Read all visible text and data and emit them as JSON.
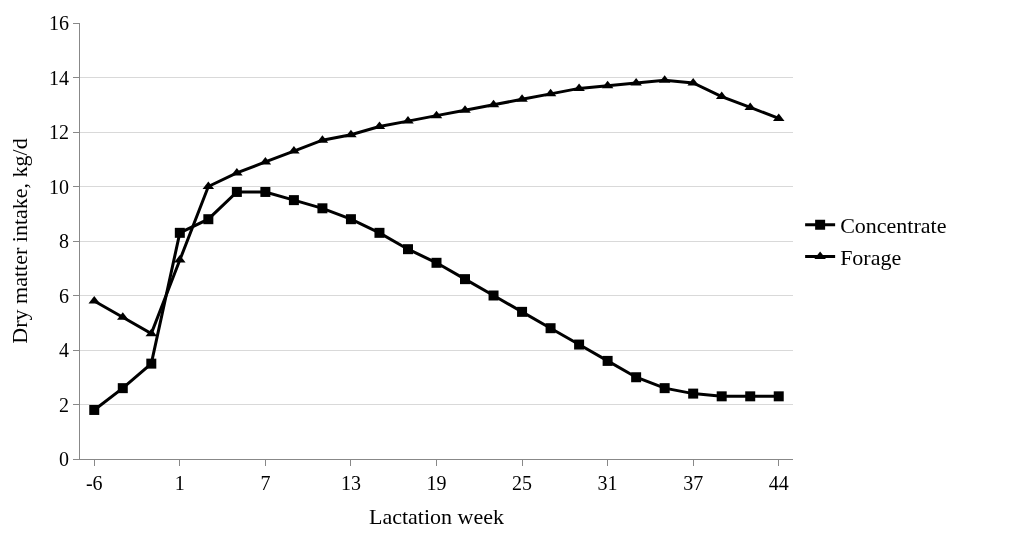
{
  "chart_data": {
    "type": "line",
    "xlabel": "Lactation week",
    "ylabel": "Dry matter intake, kg/d",
    "categories": [
      "-6",
      null,
      null,
      "1",
      null,
      null,
      "7",
      null,
      null,
      "13",
      null,
      null,
      "19",
      null,
      null,
      "25",
      null,
      null,
      "31",
      null,
      null,
      "37",
      null,
      null,
      "44"
    ],
    "series": [
      {
        "name": "Concentrate",
        "color": "#000000",
        "marker": "square",
        "values": [
          1.8,
          2.6,
          3.5,
          8.3,
          8.8,
          9.8,
          9.8,
          9.5,
          9.2,
          8.8,
          8.3,
          7.7,
          7.2,
          6.6,
          6.0,
          5.4,
          4.8,
          4.2,
          3.6,
          3.0,
          2.6,
          2.4,
          2.3,
          2.3,
          2.3
        ]
      },
      {
        "name": "Forage",
        "color": "#000000",
        "marker": "triangle",
        "values": [
          5.8,
          5.2,
          4.6,
          7.3,
          10.0,
          10.5,
          10.9,
          11.3,
          11.7,
          11.9,
          12.2,
          12.4,
          12.6,
          12.8,
          13.0,
          13.2,
          13.4,
          13.6,
          13.7,
          13.8,
          13.9,
          13.8,
          13.3,
          12.9,
          12.5
        ]
      }
    ],
    "ylim": [
      0,
      16
    ],
    "yticks": [
      0,
      2,
      4,
      6,
      8,
      10,
      12,
      14,
      16
    ],
    "grid": "y",
    "legend": "right",
    "line_style": "solid"
  }
}
